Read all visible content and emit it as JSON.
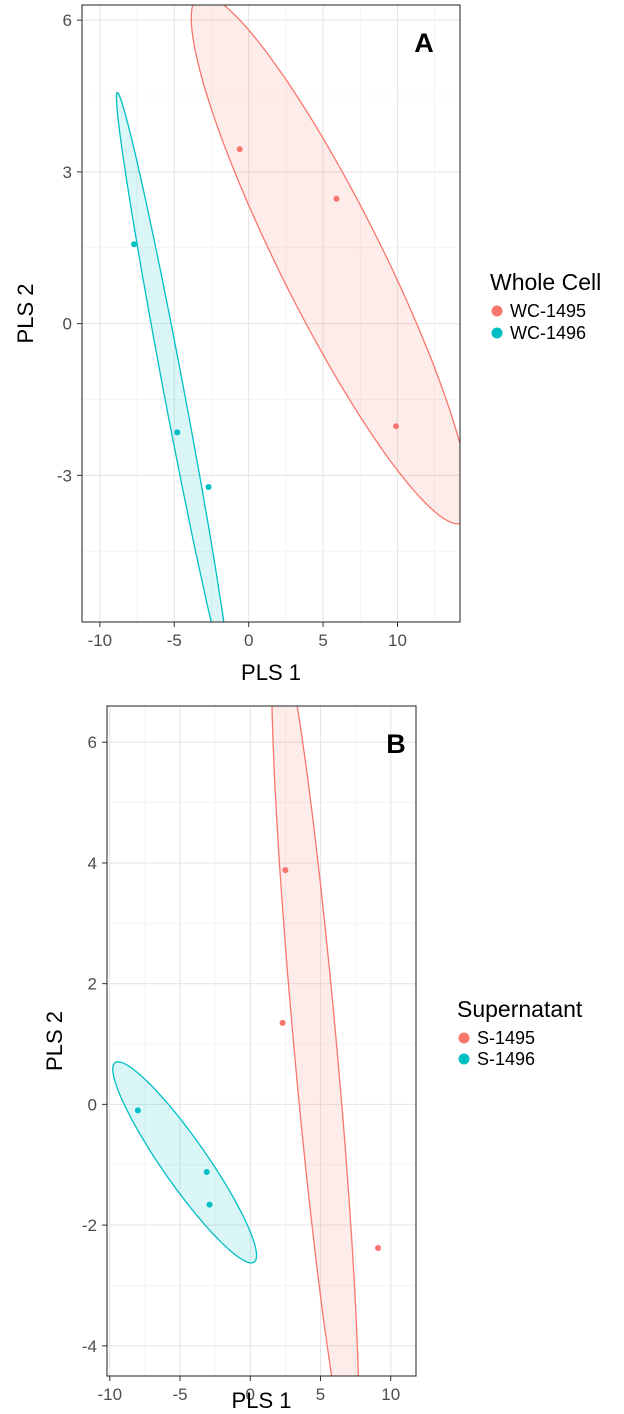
{
  "chart_data": [
    {
      "type": "scatter",
      "panel_label": "A",
      "xlabel": "PLS 1",
      "ylabel": "PLS 2",
      "xlim": [
        -11.2,
        14.2
      ],
      "ylim": [
        -5.9,
        6.3
      ],
      "xticks": [
        -10,
        -5,
        0,
        5,
        10
      ],
      "yticks": [
        -3,
        0,
        3,
        6
      ],
      "grid": true,
      "legend": {
        "title": "Whole Cell",
        "position": "right"
      },
      "series": [
        {
          "name": "WC-1495",
          "color": "#F8766D",
          "points": [
            [
              -0.6,
              3.45
            ],
            [
              5.9,
              2.47
            ],
            [
              9.9,
              -2.03
            ]
          ],
          "ellipse": {
            "center": [
              5.5,
              1.27
            ],
            "semi_major": 10.55,
            "semi_minor": 1.9,
            "angle_deg": -28
          }
        },
        {
          "name": "WC-1496",
          "color": "#00BFC4",
          "points": [
            [
              -7.7,
              1.57
            ],
            [
              -4.8,
              -2.15
            ],
            [
              -2.7,
              -3.23
            ]
          ],
          "ellipse": {
            "center": [
              -5.07,
              -1.27
            ],
            "semi_major": 6.95,
            "semi_minor": 0.58,
            "angle_deg": -57
          }
        }
      ]
    },
    {
      "type": "scatter",
      "panel_label": "B",
      "xlabel": "PLS 1",
      "ylabel": "PLS 2",
      "xlim": [
        -10.2,
        11.8
      ],
      "ylim": [
        -4.5,
        6.6
      ],
      "xticks": [
        -10,
        -5,
        0,
        5,
        10
      ],
      "yticks": [
        -4,
        -2,
        0,
        2,
        4,
        6
      ],
      "grid": true,
      "legend": {
        "title": "Supernatant",
        "position": "right"
      },
      "series": [
        {
          "name": "S-1495",
          "color": "#F8766D",
          "points": [
            [
              2.5,
              3.88
            ],
            [
              2.3,
              1.35
            ],
            [
              9.1,
              -2.38
            ]
          ],
          "ellipse": {
            "center": [
              4.63,
              0.96
            ],
            "semi_major": 7.5,
            "semi_minor": 1.42,
            "angle_deg": -68
          }
        },
        {
          "name": "S-1496",
          "color": "#00BFC4",
          "points": [
            [
              -8.0,
              -0.1
            ],
            [
              -3.1,
              -1.12
            ],
            [
              -2.9,
              -1.66
            ]
          ],
          "ellipse": {
            "center": [
              -4.67,
              -0.96
            ],
            "semi_major": 5.35,
            "semi_minor": 0.6,
            "angle_deg": -17
          }
        }
      ]
    }
  ]
}
